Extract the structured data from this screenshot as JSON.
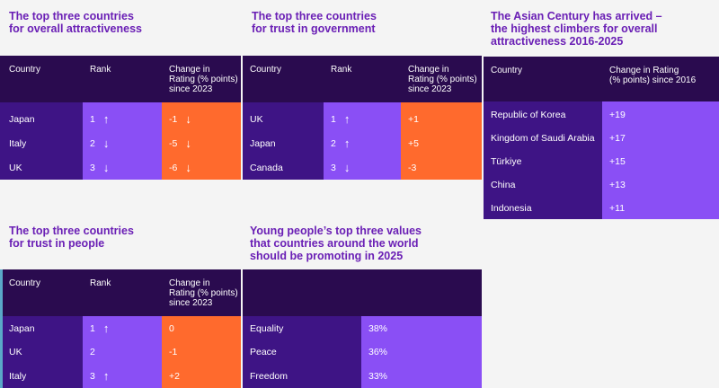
{
  "p1": {
    "title": "The top three countries\nfor overall attractiveness",
    "headers": [
      "Country",
      "Rank",
      "Change in\nRating (% points)\nsince 2023"
    ],
    "rows": [
      {
        "country": "Japan",
        "rank": "1",
        "rank_arrow": "↑",
        "change": "-1",
        "change_arrow": "↓"
      },
      {
        "country": "Italy",
        "rank": "2",
        "rank_arrow": "↓",
        "change": "-5",
        "change_arrow": "↓"
      },
      {
        "country": "UK",
        "rank": "3",
        "rank_arrow": "↓",
        "change": "-6",
        "change_arrow": "↓"
      }
    ]
  },
  "p2": {
    "title": "The top three countries\nfor trust in government",
    "headers": [
      "Country",
      "Rank",
      "Change in\nRating (% points)\nsince 2023"
    ],
    "rows": [
      {
        "country": "UK",
        "rank": "1",
        "rank_arrow": "↑",
        "change": "+1"
      },
      {
        "country": "Japan",
        "rank": "2",
        "rank_arrow": "↑",
        "change": "+5"
      },
      {
        "country": "Canada",
        "rank": "3",
        "rank_arrow": "↓",
        "change": "-3"
      }
    ]
  },
  "p3": {
    "title": "The Asian Century has arrived –\nthe highest climbers for overall\nattractiveness 2016-2025",
    "headers": [
      "Country",
      "Change in Rating\n(% points) since 2016"
    ],
    "rows": [
      {
        "country": "Republic of Korea",
        "change": "+19"
      },
      {
        "country": "Kingdom of Saudi Arabia",
        "change": "+17"
      },
      {
        "country": "Türkiye",
        "change": "+15"
      },
      {
        "country": "China",
        "change": "+13"
      },
      {
        "country": "Indonesia",
        "change": "+11"
      }
    ]
  },
  "p4": {
    "title": "The top three countries\nfor trust in people",
    "headers": [
      "Country",
      "Rank",
      "Change in\nRating (% points)\nsince 2023"
    ],
    "rows": [
      {
        "country": "Japan",
        "rank": "1",
        "rank_arrow": "↑",
        "change": "0"
      },
      {
        "country": "UK",
        "rank": "2",
        "rank_arrow": "",
        "change": "-1"
      },
      {
        "country": "Italy",
        "rank": "3",
        "rank_arrow": "↑",
        "change": "+2"
      }
    ]
  },
  "p5": {
    "title": "Young people’s top three values\nthat countries around the world\nshould be promoting in 2025",
    "rows": [
      {
        "value": "Equality",
        "percent": "38%"
      },
      {
        "value": "Peace",
        "percent": "36%"
      },
      {
        "value": "Freedom",
        "percent": "33%"
      }
    ]
  },
  "colors": {
    "dark": "#2a0b4f",
    "mid_purple": "#3e1485",
    "light_purple": "#8a4ff5",
    "orange": "#ff6a2d",
    "title": "#6a1fb5"
  }
}
